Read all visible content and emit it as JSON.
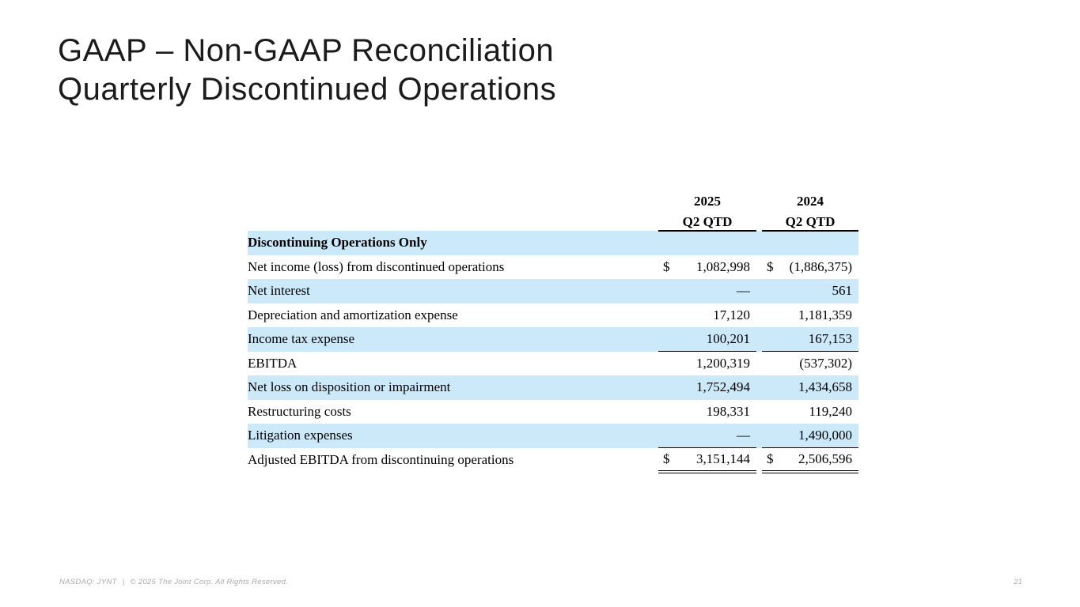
{
  "slide": {
    "title_line1": "GAAP – Non-GAAP Reconciliation",
    "title_line2": "Quarterly Discontinued Operations",
    "page_number": "21"
  },
  "footer": {
    "ticker": "NASDAQ: JYNT",
    "separator": "|",
    "copyright": "© 2025 The Joint Corp. All Rights Reserved."
  },
  "table": {
    "currency_symbol": "$",
    "columns": [
      {
        "year": "2025",
        "period": "Q2 QTD"
      },
      {
        "year": "2024",
        "period": "Q2 QTD"
      }
    ],
    "rows": [
      {
        "label": "Discontinuing Operations Only",
        "bold": true,
        "v2025": "",
        "v2024": "",
        "dollar": false
      },
      {
        "label": "Net income (loss) from discontinued operations",
        "v2025": "1,082,998",
        "v2024": "(1,886,375)",
        "dollar": true
      },
      {
        "label": "Net interest",
        "v2025": "—",
        "v2024": "561",
        "dollar": false
      },
      {
        "label": "Depreciation and amortization expense",
        "v2025": "17,120",
        "v2024": "1,181,359",
        "dollar": false
      },
      {
        "label": "Income tax expense",
        "v2025": "100,201",
        "v2024": "167,153",
        "dollar": false,
        "underline": true
      },
      {
        "label": "EBITDA",
        "v2025": "1,200,319",
        "v2024": "(537,302)",
        "dollar": false
      },
      {
        "label": "Net loss on disposition or impairment",
        "v2025": "1,752,494",
        "v2024": "1,434,658",
        "dollar": false
      },
      {
        "label": "Restructuring costs",
        "v2025": "198,331",
        "v2024": "119,240",
        "dollar": false
      },
      {
        "label": "Litigation expenses",
        "v2025": "—",
        "v2024": "1,490,000",
        "dollar": false,
        "underline": true
      },
      {
        "label": "Adjusted EBITDA from discontinuing operations",
        "v2025": "3,151,144",
        "v2024": "2,506,596",
        "dollar": true,
        "double_underline": true
      }
    ]
  },
  "colors": {
    "stripe_blue": "#cce9fa",
    "rule_black": "#000000",
    "title_text": "#1b1b1b",
    "footer_gray": "#a9a9ae"
  }
}
